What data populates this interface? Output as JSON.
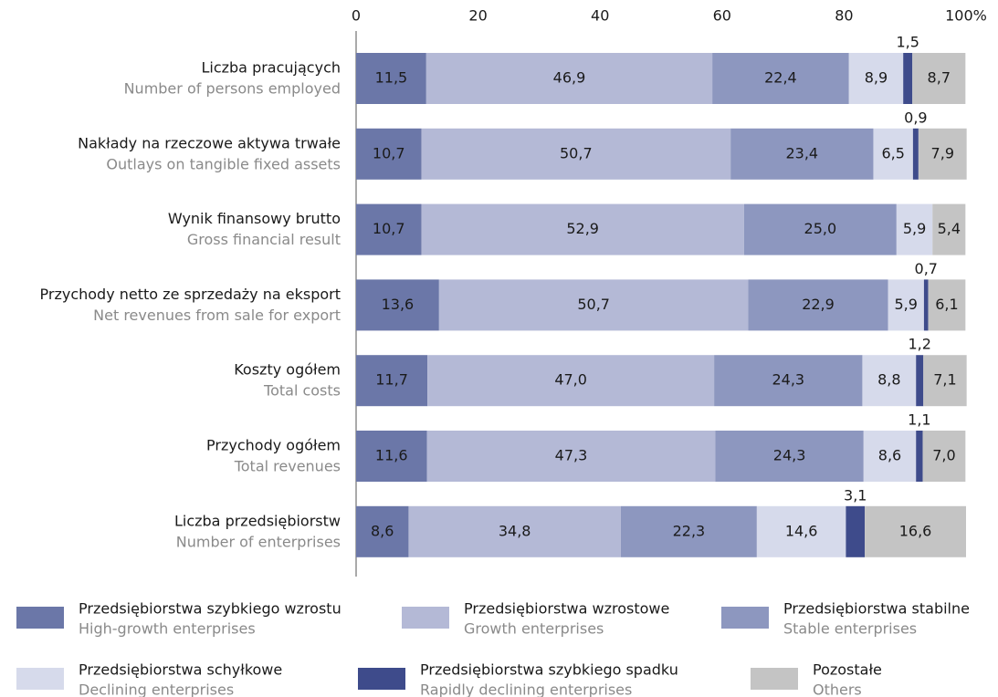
{
  "chart_data": {
    "type": "stacked_barh",
    "categories": [
      "Liczba pracujących",
      "Nakłady na rzeczowe aktywa trwałe",
      "Wynik finansowy brutto",
      "Przychody netto ze sprzedaży na eksport",
      "Koszty ogółem",
      "Przychody ogółem",
      "Liczba przedsiębiorstw"
    ],
    "categories_en": [
      "Number of persons employed",
      "Outlays on tangible fixed assets",
      "Gross financial result",
      "Net revenues from sale for export",
      "Total costs",
      "Total revenues",
      "Number of enterprises"
    ],
    "xlim": [
      0,
      100
    ],
    "xticks": [
      0,
      20,
      40,
      60,
      80,
      {
        "value": 100,
        "label": "100%"
      }
    ],
    "series": [
      {
        "name": "Przedsiębiorstwa szybkiego wzrostu",
        "name_en": "High-growth enterprises",
        "color": "#6b77a8",
        "text_color": "#ffffff",
        "values": [
          11.5,
          10.7,
          10.7,
          13.6,
          11.7,
          11.6,
          8.6
        ],
        "value_labels": [
          "11,5",
          "10,7",
          "10,7",
          "13,6",
          "11,7",
          "11,6",
          "8,6"
        ]
      },
      {
        "name": "Przedsiębiorstwa wzrostowe",
        "name_en": "Growth enterprises",
        "color": "#b4b9d6",
        "text_color": "#1a1a1a",
        "values": [
          46.9,
          50.7,
          52.9,
          50.7,
          47.0,
          47.3,
          34.8
        ],
        "value_labels": [
          "46,9",
          "50,7",
          "52,9",
          "50,7",
          "47,0",
          "47,3",
          "34,8"
        ]
      },
      {
        "name": "Przedsiębiorstwa stabilne",
        "name_en": "Stable enterprises",
        "color": "#8d97bf",
        "text_color": "#ffffff",
        "values": [
          22.4,
          23.4,
          25.0,
          22.9,
          24.3,
          24.3,
          22.3
        ],
        "value_labels": [
          "22,4",
          "23,4",
          "25,0",
          "22,9",
          "24,3",
          "24,3",
          "22,3"
        ]
      },
      {
        "name": "Przedsiębiorstwa schyłkowe",
        "name_en": "Declining enterprises",
        "color": "#d6daeb",
        "text_color": "#1a1a1a",
        "values": [
          8.9,
          6.5,
          5.9,
          5.9,
          8.8,
          8.6,
          14.6
        ],
        "value_labels": [
          "8,9",
          "6,5",
          "5,9",
          "5,9",
          "8,8",
          "8,6",
          "14,6"
        ]
      },
      {
        "name": "Przedsiębiorstwa szybkiego spadku",
        "name_en": "Rapidly declining enterprises",
        "color": "#3e4b8b",
        "text_color": "#1a1a1a",
        "values": [
          1.5,
          0.9,
          null,
          0.7,
          1.2,
          1.1,
          3.1
        ],
        "value_labels": [
          "1,5",
          "0,9",
          null,
          "0,7",
          "1,2",
          "1,1",
          "3,1"
        ]
      },
      {
        "name": "Pozostałe",
        "name_en": "Others",
        "color": "#c4c4c4",
        "text_color": "#1a1a1a",
        "values": [
          8.7,
          7.9,
          5.4,
          6.1,
          7.1,
          7.0,
          16.6
        ],
        "value_labels": [
          "8,7",
          "7,9",
          "5,4",
          "6,1",
          "7,1",
          "7,0",
          "16,6"
        ]
      }
    ]
  }
}
